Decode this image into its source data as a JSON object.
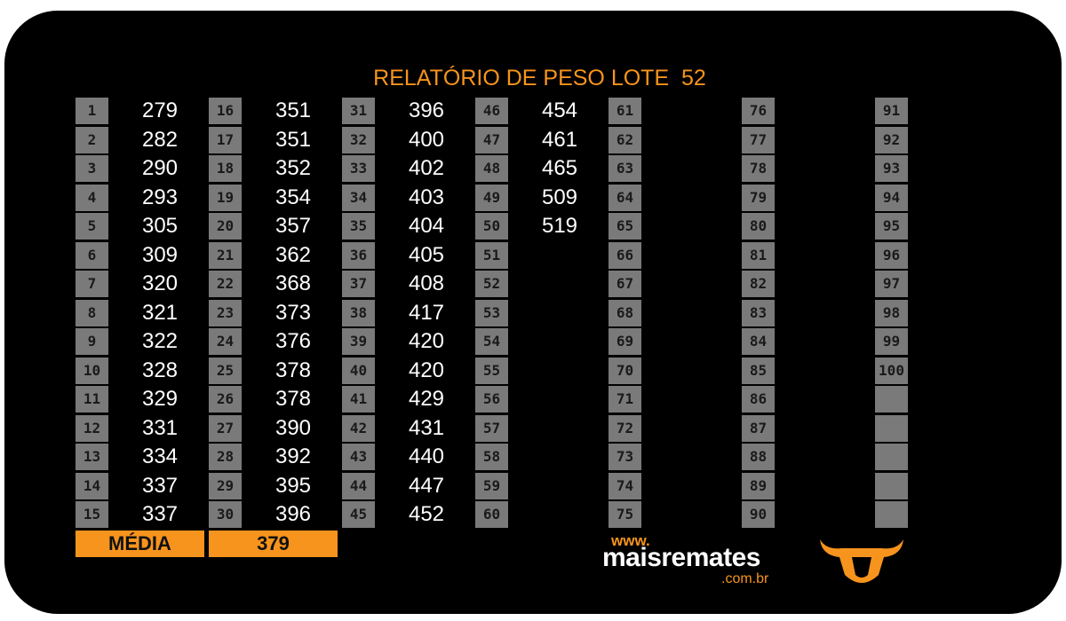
{
  "header": {
    "title": "RELATÓRIO DE PESO LOTE  52"
  },
  "table": {
    "numbers": [
      1,
      2,
      3,
      4,
      5,
      6,
      7,
      8,
      9,
      10,
      11,
      12,
      13,
      14,
      15,
      16,
      17,
      18,
      19,
      20,
      21,
      22,
      23,
      24,
      25,
      26,
      27,
      28,
      29,
      30,
      31,
      32,
      33,
      34,
      35,
      36,
      37,
      38,
      39,
      40,
      41,
      42,
      43,
      44,
      45,
      46,
      47,
      48,
      49,
      50,
      51,
      52,
      53,
      54,
      55,
      56,
      57,
      58,
      59,
      60,
      61,
      62,
      63,
      64,
      65,
      66,
      67,
      68,
      69,
      70,
      71,
      72,
      73,
      74,
      75,
      76,
      77,
      78,
      79,
      80,
      81,
      82,
      83,
      84,
      85,
      86,
      87,
      88,
      89,
      90,
      91,
      92,
      93,
      94,
      95,
      96,
      97,
      98,
      99,
      100
    ],
    "weights": [
      279,
      282,
      290,
      293,
      305,
      309,
      320,
      321,
      322,
      328,
      329,
      331,
      334,
      337,
      337,
      351,
      351,
      352,
      354,
      357,
      362,
      368,
      373,
      376,
      378,
      378,
      390,
      392,
      395,
      396,
      396,
      400,
      402,
      403,
      404,
      405,
      408,
      417,
      420,
      420,
      429,
      431,
      440,
      447,
      452,
      454,
      461,
      465,
      509,
      519
    ]
  },
  "summary": {
    "label": "MÉDIA",
    "value": 379
  },
  "logo": {
    "prefix": "www.",
    "name": "maisremates",
    "suffix": ".com.br"
  }
}
